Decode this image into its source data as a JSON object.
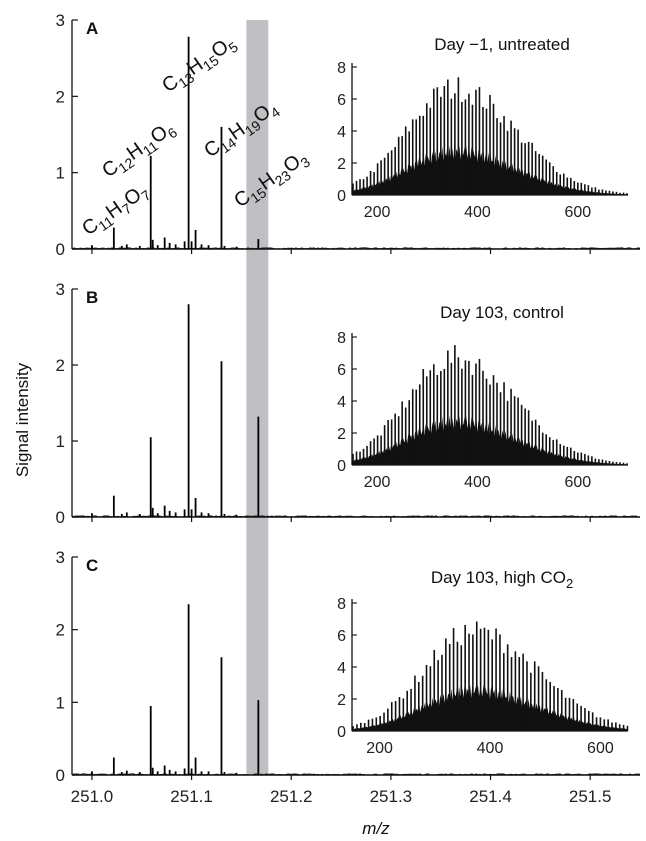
{
  "figure": {
    "ylabel": "Signal intensity",
    "xlabel": "m/z",
    "highlight_mz": [
      251.155,
      251.177
    ],
    "highlight_color": "#c0c0c4"
  },
  "chart_data": [
    {
      "type": "line",
      "panel": "A",
      "title": "",
      "x_ticks": [
        "251.0",
        "251.1",
        "251.2",
        "251.3",
        "251.4",
        "251.5"
      ],
      "xlim": [
        250.98,
        251.55
      ],
      "ylim": [
        0,
        3
      ],
      "y_ticks": [
        "0",
        "1",
        "2",
        "3"
      ],
      "peaks": {
        "mz": [
          251.0,
          251.022,
          251.03,
          251.035,
          251.048,
          251.059,
          251.061,
          251.066,
          251.073,
          251.078,
          251.084,
          251.093,
          251.097,
          251.1,
          251.104,
          251.11,
          251.117,
          251.13,
          251.133,
          251.145,
          251.167
        ],
        "intensity": [
          0.05,
          0.28,
          0.04,
          0.06,
          0.04,
          1.22,
          0.12,
          0.05,
          0.15,
          0.08,
          0.06,
          0.1,
          2.78,
          0.1,
          0.25,
          0.06,
          0.05,
          1.6,
          0.04,
          0.03,
          0.13
        ]
      },
      "annotations": [
        {
          "label": "C11H7O7",
          "main": "C",
          "parts": [
            [
              "11",
              "sub"
            ],
            [
              "H",
              "n"
            ],
            [
              "7",
              "sub"
            ],
            [
              "O",
              "n"
            ],
            [
              "7",
              "sub"
            ]
          ]
        },
        {
          "label": "C12H11O6",
          "main": "C",
          "parts": [
            [
              "12",
              "sub"
            ],
            [
              "H",
              "n"
            ],
            [
              "11",
              "sub"
            ],
            [
              "O",
              "n"
            ],
            [
              "6",
              "sub"
            ]
          ]
        },
        {
          "label": "C13H15O5",
          "main": "C",
          "parts": [
            [
              "13",
              "sub"
            ],
            [
              "H",
              "n"
            ],
            [
              "15",
              "sub"
            ],
            [
              "O",
              "n"
            ],
            [
              "5",
              "sub"
            ]
          ]
        },
        {
          "label": "C14H19O4",
          "main": "C",
          "parts": [
            [
              "14",
              "sub"
            ],
            [
              "H",
              "n"
            ],
            [
              "19",
              "sub"
            ],
            [
              "O",
              "n"
            ],
            [
              "4",
              "sub"
            ]
          ]
        },
        {
          "label": "C15H23O3",
          "main": "C",
          "parts": [
            [
              "15",
              "sub"
            ],
            [
              "H",
              "n"
            ],
            [
              "23",
              "sub"
            ],
            [
              "O",
              "n"
            ],
            [
              "3",
              "sub"
            ]
          ]
        }
      ],
      "inset": {
        "type": "bar",
        "title": "Day −1, untreated",
        "xlim": [
          150,
          700
        ],
        "ylim": [
          0,
          8
        ],
        "x_ticks": [
          "200",
          "400",
          "600"
        ],
        "y_ticks": [
          "0",
          "2",
          "4",
          "6",
          "8"
        ],
        "envelope": {
          "center_mz": 355,
          "peak_intensity": 7.5,
          "width_low": 95,
          "width_high": 120
        }
      }
    },
    {
      "type": "line",
      "panel": "B",
      "title": "",
      "x_ticks": [
        "251.0",
        "251.1",
        "251.2",
        "251.3",
        "251.4",
        "251.5"
      ],
      "xlim": [
        250.98,
        251.55
      ],
      "ylim": [
        0,
        3
      ],
      "y_ticks": [
        "0",
        "1",
        "2",
        "3"
      ],
      "peaks": {
        "mz": [
          251.0,
          251.022,
          251.03,
          251.035,
          251.048,
          251.059,
          251.061,
          251.066,
          251.073,
          251.078,
          251.084,
          251.093,
          251.097,
          251.1,
          251.104,
          251.11,
          251.117,
          251.13,
          251.133,
          251.145,
          251.167
        ],
        "intensity": [
          0.05,
          0.28,
          0.04,
          0.06,
          0.04,
          1.05,
          0.12,
          0.05,
          0.15,
          0.08,
          0.06,
          0.1,
          2.8,
          0.1,
          0.25,
          0.06,
          0.05,
          2.05,
          0.04,
          0.03,
          1.32
        ]
      },
      "annotations": [],
      "inset": {
        "type": "bar",
        "title": "Day 103, control",
        "xlim": [
          150,
          700
        ],
        "ylim": [
          0,
          8
        ],
        "x_ticks": [
          "200",
          "400",
          "600"
        ],
        "y_ticks": [
          "0",
          "2",
          "4",
          "6",
          "8"
        ],
        "envelope": {
          "center_mz": 355,
          "peak_intensity": 7.5,
          "width_low": 95,
          "width_high": 120
        }
      }
    },
    {
      "type": "line",
      "panel": "C",
      "title": "",
      "x_ticks": [
        "251.0",
        "251.1",
        "251.2",
        "251.3",
        "251.4",
        "251.5"
      ],
      "xlim": [
        250.98,
        251.55
      ],
      "ylim": [
        0,
        3
      ],
      "y_ticks": [
        "0",
        "1",
        "2",
        "3"
      ],
      "peaks": {
        "mz": [
          251.0,
          251.022,
          251.03,
          251.035,
          251.048,
          251.059,
          251.061,
          251.066,
          251.073,
          251.078,
          251.084,
          251.093,
          251.097,
          251.1,
          251.104,
          251.11,
          251.117,
          251.13,
          251.133,
          251.145,
          251.167
        ],
        "intensity": [
          0.05,
          0.24,
          0.04,
          0.06,
          0.04,
          0.95,
          0.1,
          0.05,
          0.13,
          0.07,
          0.05,
          0.09,
          2.35,
          0.09,
          0.24,
          0.05,
          0.05,
          1.62,
          0.04,
          0.03,
          1.03
        ]
      },
      "annotations": [],
      "inset": {
        "type": "bar",
        "title": "Day 103, high CO",
        "title_sub": "2",
        "xlim": [
          150,
          650
        ],
        "ylim": [
          0,
          8
        ],
        "x_ticks": [
          "200",
          "400",
          "600"
        ],
        "y_ticks": [
          "0",
          "2",
          "4",
          "6",
          "8"
        ],
        "envelope": {
          "center_mz": 370,
          "peak_intensity": 7.0,
          "width_low": 90,
          "width_high": 115
        }
      }
    }
  ]
}
